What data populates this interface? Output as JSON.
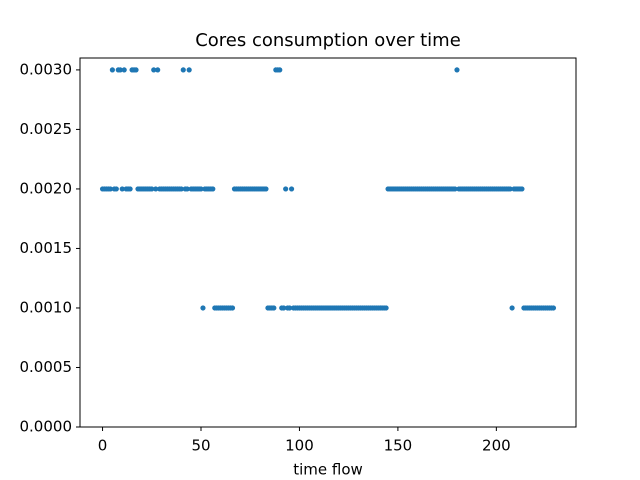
{
  "chart_data": {
    "type": "scatter",
    "title": "Cores consumption over time",
    "x_label": "time flow",
    "color": "#1f77b4",
    "x": [
      0,
      1,
      2,
      3,
      4,
      5,
      6,
      7,
      8,
      9,
      10,
      11,
      12,
      13,
      14,
      15,
      16,
      17,
      18,
      19,
      20,
      21,
      22,
      23,
      24,
      25,
      26,
      27,
      28,
      29,
      30,
      31,
      32,
      33,
      34,
      35,
      36,
      37,
      38,
      39,
      40,
      41,
      42,
      43,
      44,
      45,
      46,
      47,
      48,
      49,
      50,
      51,
      52,
      53,
      54,
      55,
      56,
      57,
      58,
      59,
      60,
      61,
      62,
      63,
      64,
      65,
      66,
      67,
      68,
      69,
      70,
      71,
      72,
      73,
      74,
      75,
      76,
      77,
      78,
      79,
      80,
      81,
      82,
      83,
      84,
      85,
      86,
      87,
      88,
      89,
      90,
      91,
      92,
      93,
      94,
      95,
      96,
      97,
      98,
      99,
      100,
      101,
      102,
      103,
      104,
      105,
      106,
      107,
      108,
      109,
      110,
      111,
      112,
      113,
      114,
      115,
      116,
      117,
      118,
      119,
      120,
      121,
      122,
      123,
      124,
      125,
      126,
      127,
      128,
      129,
      130,
      131,
      132,
      133,
      134,
      135,
      136,
      137,
      138,
      139,
      140,
      141,
      142,
      143,
      144,
      145,
      146,
      147,
      148,
      149,
      150,
      151,
      152,
      153,
      154,
      155,
      156,
      157,
      158,
      159,
      160,
      161,
      162,
      163,
      164,
      165,
      166,
      167,
      168,
      169,
      170,
      171,
      172,
      173,
      174,
      175,
      176,
      177,
      178,
      179,
      180,
      181,
      182,
      183,
      184,
      185,
      186,
      187,
      188,
      189,
      190,
      191,
      192,
      193,
      194,
      195,
      196,
      197,
      198,
      199,
      200,
      201,
      202,
      203,
      204,
      205,
      206,
      207,
      208,
      209,
      210,
      211,
      212,
      213,
      214,
      215,
      216,
      217,
      218,
      219,
      220,
      221,
      222,
      223,
      224,
      225,
      226,
      227,
      228,
      229
    ],
    "values": [
      0.002,
      0.002,
      0.002,
      0.002,
      0.002,
      0.003,
      0.002,
      0.002,
      0.003,
      0.003,
      0.002,
      0.003,
      0.002,
      0.002,
      0.002,
      0.003,
      0.003,
      0.003,
      0.002,
      0.002,
      0.002,
      0.002,
      0.002,
      0.002,
      0.002,
      0.002,
      0.003,
      0.002,
      0.003,
      0.002,
      0.002,
      0.002,
      0.002,
      0.002,
      0.002,
      0.002,
      0.002,
      0.002,
      0.002,
      0.002,
      0.002,
      0.003,
      0.002,
      0.002,
      0.003,
      0.002,
      0.002,
      0.002,
      0.002,
      0.002,
      0.002,
      0.001,
      0.002,
      0.002,
      0.002,
      0.002,
      0.002,
      0.001,
      0.001,
      0.001,
      0.001,
      0.001,
      0.001,
      0.001,
      0.001,
      0.001,
      0.001,
      0.002,
      0.002,
      0.002,
      0.002,
      0.002,
      0.002,
      0.002,
      0.002,
      0.002,
      0.002,
      0.002,
      0.002,
      0.002,
      0.002,
      0.002,
      0.002,
      0.002,
      0.001,
      0.001,
      0.001,
      0.001,
      0.003,
      0.003,
      0.003,
      0.001,
      0.001,
      0.002,
      0.001,
      0.001,
      0.002,
      0.001,
      0.001,
      0.001,
      0.001,
      0.001,
      0.001,
      0.001,
      0.001,
      0.001,
      0.001,
      0.001,
      0.001,
      0.001,
      0.001,
      0.001,
      0.001,
      0.001,
      0.001,
      0.001,
      0.001,
      0.001,
      0.001,
      0.001,
      0.001,
      0.001,
      0.001,
      0.001,
      0.001,
      0.001,
      0.001,
      0.001,
      0.001,
      0.001,
      0.001,
      0.001,
      0.001,
      0.001,
      0.001,
      0.001,
      0.001,
      0.001,
      0.001,
      0.001,
      0.001,
      0.001,
      0.001,
      0.001,
      0.001,
      0.002,
      0.002,
      0.002,
      0.002,
      0.002,
      0.002,
      0.002,
      0.002,
      0.002,
      0.002,
      0.002,
      0.002,
      0.002,
      0.002,
      0.002,
      0.002,
      0.002,
      0.002,
      0.002,
      0.002,
      0.002,
      0.002,
      0.002,
      0.002,
      0.002,
      0.002,
      0.002,
      0.002,
      0.002,
      0.002,
      0.002,
      0.002,
      0.002,
      0.002,
      0.002,
      0.003,
      0.002,
      0.002,
      0.002,
      0.002,
      0.002,
      0.002,
      0.002,
      0.002,
      0.002,
      0.002,
      0.002,
      0.002,
      0.002,
      0.002,
      0.002,
      0.002,
      0.002,
      0.002,
      0.002,
      0.002,
      0.002,
      0.002,
      0.002,
      0.002,
      0.002,
      0.002,
      0.002,
      0.001,
      0.002,
      0.002,
      0.002,
      0.002,
      0.002,
      0.001,
      0.001,
      0.001,
      0.001,
      0.001,
      0.001,
      0.001,
      0.001,
      0.001,
      0.001,
      0.001,
      0.001,
      0.001,
      0.001,
      0.001,
      0.001
    ],
    "xlim": [
      -11.45,
      240.45
    ],
    "xticks": [
      0,
      50,
      100,
      150,
      200
    ],
    "ylim": [
      0,
      0.0031
    ],
    "yticks": [
      {
        "value": 0,
        "label": "0.0000"
      },
      {
        "value": 0.0005,
        "label": "0.0005"
      },
      {
        "value": 0.001,
        "label": "0.0010"
      },
      {
        "value": 0.0015,
        "label": "0.0015"
      },
      {
        "value": 0.002,
        "label": "0.0020"
      },
      {
        "value": 0.0025,
        "label": "0.0025"
      },
      {
        "value": 0.003,
        "label": "0.0030"
      }
    ]
  }
}
